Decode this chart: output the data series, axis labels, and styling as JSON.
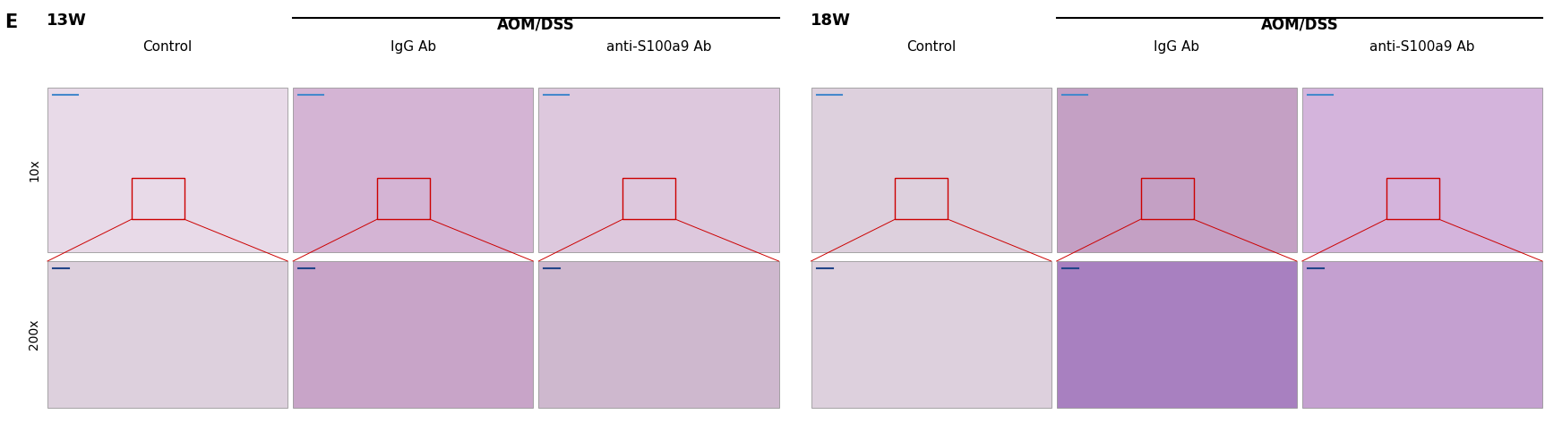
{
  "title_label": "E",
  "left_group_label": "13W",
  "right_group_label": "18W",
  "aom_dss_label": "AOM/DSS",
  "col_labels_left": [
    "Control",
    "IgG Ab",
    "anti-S100a9 Ab"
  ],
  "col_labels_right": [
    "Control",
    "IgG Ab",
    "anti-S100a9 Ab"
  ],
  "row_labels": [
    "10x",
    "200x"
  ],
  "background_color": "#ffffff",
  "border_color": "#000000",
  "line_color": "#000000",
  "zoom_box_color": "#cc0000",
  "zoom_line_color": "#cc0000",
  "panel_border_color": "#888888",
  "fig_width": 17.25,
  "fig_height": 4.73,
  "dpi": 100,
  "top_hist_colors_left": [
    "#e8d5e8",
    "#c8a0c8",
    "#d4b8d4"
  ],
  "bot_hist_colors_left": [
    "#e0cce0",
    "#b898b8",
    "#c8a8c8"
  ],
  "top_hist_colors_right": [
    "#dcc8dc",
    "#c0a0c0",
    "#d0b0d8"
  ],
  "bot_hist_colors_right": [
    "#dcc8dc",
    "#9878b8",
    "#c0a0c8"
  ]
}
